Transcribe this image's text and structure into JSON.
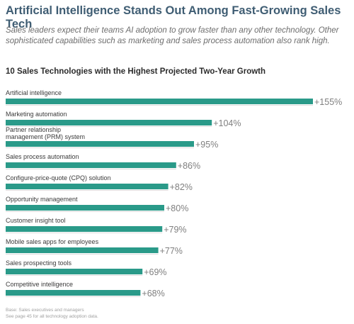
{
  "header": {
    "title": "Artificial Intelligence Stands Out Among Fast-Growing Sales Tech",
    "subtitle": "Sales leaders expect their teams AI adoption to grow faster than any other technology. Other sophisticated capabilities such as marketing and sales process automation also rank high."
  },
  "footnote": {
    "line1": "Base: Sales executives and managers",
    "line2": "See page 45 for all technology adoption data."
  },
  "colors": {
    "bar": "#2a9a89",
    "divider": "#dcdcdc",
    "title": "#3f5d73"
  },
  "chart_data": {
    "type": "bar",
    "orientation": "horizontal",
    "title": "10 Sales Technologies with the Highest Projected Two-Year Growth",
    "categories": [
      [
        "Artificial intelligence"
      ],
      [
        "Marketing automation"
      ],
      [
        "Partner relationship",
        "management (PRM) system"
      ],
      [
        "Sales process automation"
      ],
      [
        "Configure-price-quote (CPQ) solution"
      ],
      [
        "Opportunity management"
      ],
      [
        "Customer insight tool"
      ],
      [
        "Mobile sales apps for employees"
      ],
      [
        "Sales prospecting tools"
      ],
      [
        "Competitive intelligence"
      ]
    ],
    "values": [
      155,
      104,
      95,
      86,
      82,
      80,
      79,
      77,
      69,
      68
    ],
    "value_labels": [
      "+155%",
      "+104%",
      "+95%",
      "+86%",
      "+82%",
      "+80%",
      "+79%",
      "+77%",
      "+69%",
      "+68%"
    ],
    "unit": "%",
    "grid": false,
    "legend": "none"
  }
}
